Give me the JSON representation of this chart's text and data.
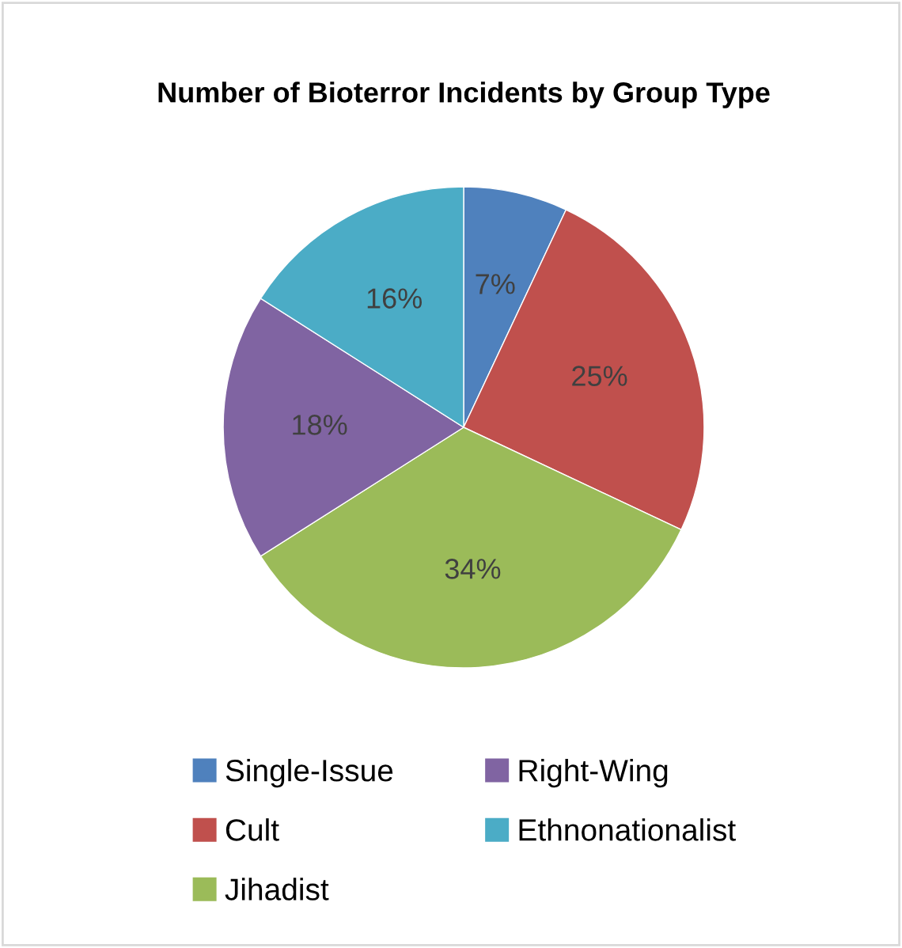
{
  "chart_data": {
    "type": "pie",
    "title": "Number of Bioterror Incidents by Group Type",
    "categories": [
      "Single-Issue",
      "Cult",
      "Jihadist",
      "Right-Wing",
      "Ethnonationalist"
    ],
    "values": [
      7,
      25,
      34,
      18,
      16
    ],
    "colors": [
      "#4f81bd",
      "#c0504d",
      "#9bbb59",
      "#8064a2",
      "#4bacc6"
    ],
    "value_labels": [
      "7%",
      "25%",
      "34%",
      "18%",
      "16%"
    ],
    "legend": "bottom"
  }
}
